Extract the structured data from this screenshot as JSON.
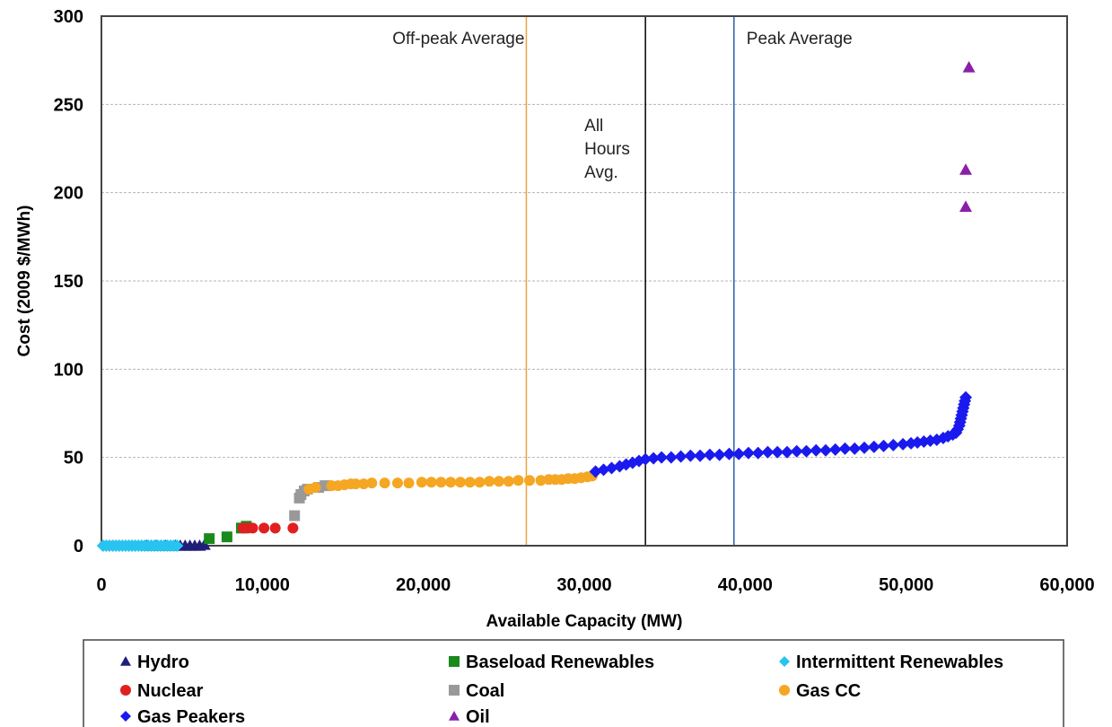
{
  "chart_data": {
    "type": "scatter",
    "title": "",
    "xlabel": "Available Capacity (MW)",
    "ylabel": "Cost (2009 $/MWh)",
    "xlim": [
      0,
      60000
    ],
    "ylim": [
      0,
      300
    ],
    "xticks": [
      "0",
      "10,000",
      "20,000",
      "30,000",
      "40,000",
      "50,000",
      "60,000"
    ],
    "yticks": [
      "0",
      "50",
      "100",
      "150",
      "200",
      "250",
      "300"
    ],
    "grid": "horizontal-dashed",
    "legend_position": "bottom",
    "vlines": [
      {
        "x": 26400,
        "label": "Off-peak Average",
        "color": "#f0a040"
      },
      {
        "x": 33800,
        "label": "All\nHours\nAvg.",
        "color": "#000000"
      },
      {
        "x": 39300,
        "label": "Peak Average",
        "color": "#2a5fa8"
      }
    ],
    "series": [
      {
        "name": "Hydro",
        "marker": "triangle-up",
        "color": "#1f1f7a",
        "points": [
          [
            2800,
            0
          ],
          [
            3100,
            0
          ],
          [
            3400,
            0
          ],
          [
            3700,
            0
          ],
          [
            4000,
            0
          ],
          [
            4300,
            0
          ],
          [
            4600,
            0
          ],
          [
            4900,
            0
          ],
          [
            5200,
            0
          ],
          [
            5500,
            0
          ],
          [
            5800,
            0
          ],
          [
            6100,
            0
          ],
          [
            6400,
            0.5
          ]
        ]
      },
      {
        "name": "Baseload Renewables",
        "marker": "square",
        "color": "#1a8a1a",
        "points": [
          [
            6700,
            4
          ],
          [
            7800,
            5
          ],
          [
            8700,
            10
          ],
          [
            9000,
            11
          ]
        ]
      },
      {
        "name": "Intermittent Renewables",
        "marker": "diamond",
        "color": "#29c3f0",
        "points": [
          [
            100,
            0
          ],
          [
            300,
            0
          ],
          [
            500,
            0
          ],
          [
            700,
            0
          ],
          [
            900,
            0
          ],
          [
            1100,
            0
          ],
          [
            1300,
            0
          ],
          [
            1500,
            0
          ],
          [
            1700,
            0
          ],
          [
            1900,
            0
          ],
          [
            2100,
            0
          ],
          [
            2300,
            0
          ],
          [
            2500,
            0
          ],
          [
            2700,
            0
          ],
          [
            2900,
            0
          ],
          [
            3100,
            0
          ],
          [
            3300,
            0
          ],
          [
            3500,
            0
          ],
          [
            3700,
            0
          ],
          [
            3900,
            0
          ],
          [
            4100,
            0
          ],
          [
            4300,
            0
          ],
          [
            4500,
            0
          ],
          [
            4700,
            0
          ]
        ]
      },
      {
        "name": "Nuclear",
        "marker": "circle",
        "color": "#e02020",
        "points": [
          [
            8800,
            10
          ],
          [
            9100,
            10
          ],
          [
            9400,
            10
          ],
          [
            10100,
            10
          ],
          [
            10800,
            10
          ],
          [
            11900,
            10
          ]
        ]
      },
      {
        "name": "Coal",
        "marker": "square",
        "color": "#999999",
        "points": [
          [
            12000,
            17
          ],
          [
            12300,
            27
          ],
          [
            12400,
            29
          ],
          [
            12600,
            31
          ],
          [
            12800,
            32
          ],
          [
            13500,
            33
          ],
          [
            13900,
            34
          ]
        ]
      },
      {
        "name": "Gas CC",
        "marker": "circle",
        "color": "#f5a623",
        "points": [
          [
            12900,
            32
          ],
          [
            13300,
            33
          ],
          [
            14300,
            34
          ],
          [
            14700,
            34
          ],
          [
            15100,
            34.5
          ],
          [
            15500,
            35
          ],
          [
            15800,
            35
          ],
          [
            16300,
            35
          ],
          [
            16800,
            35.5
          ],
          [
            17600,
            35.5
          ],
          [
            18400,
            35.5
          ],
          [
            19100,
            35.5
          ],
          [
            19900,
            36
          ],
          [
            20500,
            36
          ],
          [
            21100,
            36
          ],
          [
            21700,
            36
          ],
          [
            22300,
            36
          ],
          [
            22900,
            36
          ],
          [
            23500,
            36
          ],
          [
            24100,
            36.5
          ],
          [
            24700,
            36.5
          ],
          [
            25300,
            36.5
          ],
          [
            25900,
            37
          ],
          [
            26600,
            37
          ],
          [
            27300,
            37
          ],
          [
            27800,
            37.5
          ],
          [
            28200,
            37.5
          ],
          [
            28600,
            37.5
          ],
          [
            29000,
            38
          ],
          [
            29400,
            38
          ],
          [
            29800,
            38.5
          ],
          [
            30200,
            39
          ],
          [
            30500,
            39.5
          ]
        ]
      },
      {
        "name": "Gas Peakers",
        "marker": "diamond",
        "color": "#1a1aee",
        "points": [
          [
            30700,
            42
          ],
          [
            31200,
            43
          ],
          [
            31700,
            44
          ],
          [
            32200,
            45
          ],
          [
            32600,
            46
          ],
          [
            33000,
            47
          ],
          [
            33400,
            48
          ],
          [
            33800,
            49
          ],
          [
            34300,
            49.5
          ],
          [
            34800,
            50
          ],
          [
            35400,
            50
          ],
          [
            36000,
            50.5
          ],
          [
            36600,
            51
          ],
          [
            37200,
            51
          ],
          [
            37800,
            51.5
          ],
          [
            38400,
            51.5
          ],
          [
            39000,
            52
          ],
          [
            39600,
            52
          ],
          [
            40200,
            52.5
          ],
          [
            40800,
            52.5
          ],
          [
            41400,
            53
          ],
          [
            42000,
            53
          ],
          [
            42600,
            53
          ],
          [
            43200,
            53.5
          ],
          [
            43800,
            53.5
          ],
          [
            44400,
            54
          ],
          [
            45000,
            54
          ],
          [
            45600,
            54.5
          ],
          [
            46200,
            55
          ],
          [
            46800,
            55
          ],
          [
            47400,
            55.5
          ],
          [
            48000,
            56
          ],
          [
            48600,
            56.5
          ],
          [
            49200,
            57
          ],
          [
            49800,
            57.5
          ],
          [
            50300,
            58
          ],
          [
            50700,
            58.5
          ],
          [
            51100,
            59
          ],
          [
            51500,
            59.5
          ],
          [
            51900,
            60
          ],
          [
            52300,
            61
          ],
          [
            52600,
            62
          ],
          [
            52900,
            63
          ],
          [
            53100,
            64
          ],
          [
            53200,
            66
          ],
          [
            53300,
            68
          ],
          [
            53350,
            70
          ],
          [
            53400,
            72
          ],
          [
            53450,
            74
          ],
          [
            53500,
            76
          ],
          [
            53550,
            78
          ],
          [
            53600,
            80
          ],
          [
            53650,
            82
          ],
          [
            53700,
            84
          ]
        ]
      },
      {
        "name": "Oil",
        "marker": "triangle-up",
        "color": "#8b1fa9",
        "points": [
          [
            53700,
            192
          ],
          [
            53700,
            213
          ],
          [
            53900,
            271
          ]
        ]
      }
    ]
  }
}
